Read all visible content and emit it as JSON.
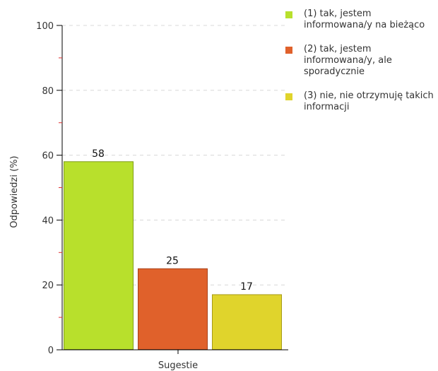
{
  "chart_data": {
    "type": "bar",
    "categories": [
      "Sugestie"
    ],
    "series": [
      {
        "name": "(1) tak, jestem informowana/y na bieżąco",
        "values": [
          58
        ],
        "color": "#b8e02c",
        "border": "#7f9d16"
      },
      {
        "name": "(2) tak, jestem informowana/y, ale sporadycznie",
        "values": [
          25
        ],
        "color": "#e0612b",
        "border": "#a8421a"
      },
      {
        "name": "(3) nie, nie otrzymuję takich informacji",
        "values": [
          17
        ],
        "color": "#e0d42c",
        "border": "#a69a16"
      }
    ],
    "data_labels": [
      "58",
      "25",
      "17"
    ],
    "xlabel": "Sugestie",
    "ylabel": "Odpowiedzi (%)",
    "ylim": [
      0,
      100
    ],
    "yticks": [
      0,
      20,
      40,
      60,
      80,
      100
    ],
    "ytick_labels": [
      "0",
      "20",
      "40",
      "60",
      "80",
      "100"
    ],
    "grid": true,
    "legend_position": "right"
  }
}
